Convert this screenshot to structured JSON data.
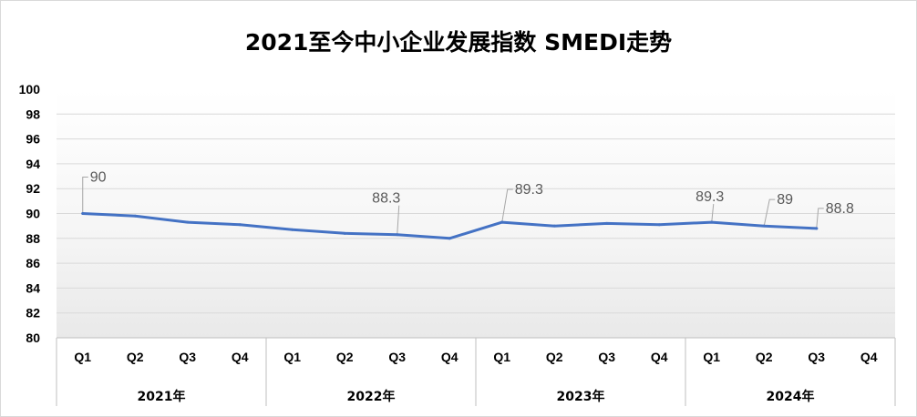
{
  "chart_data": {
    "type": "line",
    "title": "2021至今中小企业发展指数 SMEDI走势",
    "xlabel": "",
    "ylabel": "",
    "ylim": [
      80,
      100
    ],
    "yticks": [
      "100",
      "98",
      "96",
      "94",
      "92",
      "90",
      "88",
      "86",
      "84",
      "82",
      "80"
    ],
    "groups": [
      {
        "label": "2021年",
        "quarters": [
          "Q1",
          "Q2",
          "Q3",
          "Q4"
        ]
      },
      {
        "label": "2022年",
        "quarters": [
          "Q1",
          "Q2",
          "Q3",
          "Q4"
        ]
      },
      {
        "label": "2023年",
        "quarters": [
          "Q1",
          "Q2",
          "Q3",
          "Q4"
        ]
      },
      {
        "label": "2024年",
        "quarters": [
          "Q1",
          "Q2",
          "Q3",
          "Q4"
        ]
      }
    ],
    "series": [
      {
        "values": [
          90.0,
          89.8,
          89.3,
          89.1,
          88.7,
          88.4,
          88.3,
          88.0,
          89.3,
          89.0,
          89.2,
          89.1,
          89.3,
          89.0,
          88.8,
          null
        ],
        "color": "#4472C4"
      }
    ],
    "data_labels": [
      {
        "index": 0,
        "text": "90"
      },
      {
        "index": 6,
        "text": "88.3"
      },
      {
        "index": 8,
        "text": "89.3"
      },
      {
        "index": 12,
        "text": "89.3"
      },
      {
        "index": 13,
        "text": "89"
      },
      {
        "index": 14,
        "text": "88.8"
      }
    ],
    "grid": true,
    "legend": "none",
    "colors": {
      "line": "#4472C4",
      "grid": "#D9D9D9",
      "label": "#595959",
      "leader": "#A6A6A6"
    }
  }
}
